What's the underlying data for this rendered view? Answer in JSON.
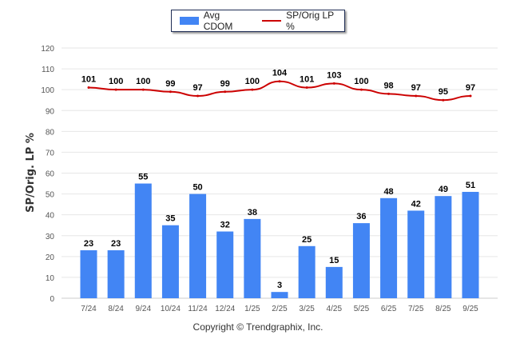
{
  "chart_data": {
    "type": "bar+line",
    "categories": [
      "7/24",
      "8/24",
      "9/24",
      "10/24",
      "11/24",
      "12/24",
      "1/25",
      "2/25",
      "3/25",
      "4/25",
      "5/25",
      "6/25",
      "7/25",
      "8/25",
      "9/25"
    ],
    "series": [
      {
        "name": "Avg CDOM",
        "type": "bar",
        "color": "#4285f4",
        "values": [
          23,
          23,
          55,
          35,
          50,
          32,
          38,
          3,
          25,
          15,
          36,
          48,
          42,
          49,
          51
        ]
      },
      {
        "name": "SP/Orig LP %",
        "type": "line",
        "color": "#cc0000",
        "values": [
          101,
          100,
          100,
          99,
          97,
          99,
          100,
          104,
          101,
          103,
          100,
          98,
          97,
          95,
          97
        ]
      }
    ],
    "ylabel": "SP/Orig. LP %",
    "ylim": [
      0,
      120
    ],
    "yticks": [
      0,
      10,
      20,
      30,
      40,
      50,
      60,
      70,
      80,
      90,
      100,
      110,
      120
    ],
    "grid": true,
    "legend_position": "top-center"
  },
  "footer": {
    "copyright": "Copyright © Trendgraphix, Inc."
  }
}
